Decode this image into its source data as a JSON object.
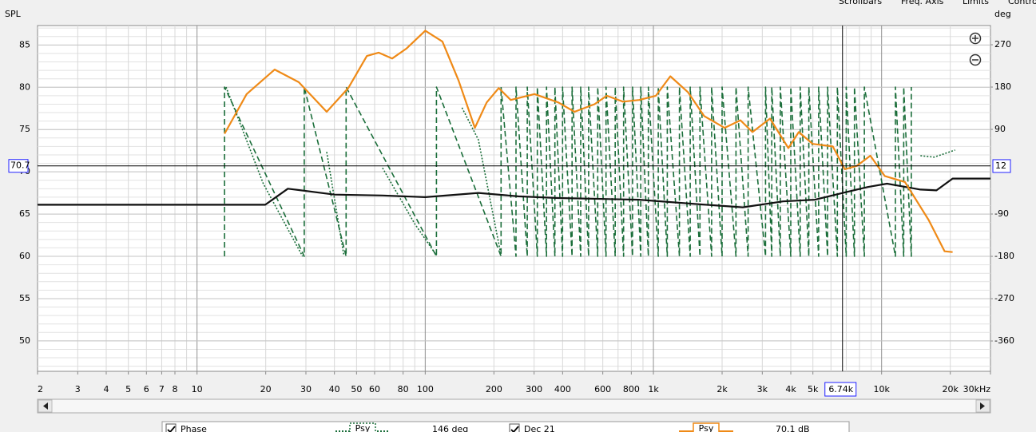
{
  "chart_data": {
    "type": "line",
    "top_buttons": [
      "Scrollbars",
      "Freq. Axis",
      "Limits",
      "Controls"
    ],
    "ylabel": "SPL",
    "y2label": "deg",
    "xlim": [
      2,
      30000
    ],
    "log_x": true,
    "xticks": [
      2,
      3,
      4,
      5,
      6,
      7,
      8,
      10,
      20,
      30,
      40,
      50,
      60,
      80,
      100,
      200,
      300,
      400,
      600,
      800,
      {
        "value": 1000,
        "label": "1k"
      },
      {
        "value": 2000,
        "label": "2k"
      },
      {
        "value": 3000,
        "label": "3k"
      },
      {
        "value": 4000,
        "label": "4k"
      },
      {
        "value": 5000,
        "label": "5k"
      },
      {
        "value": 10000,
        "label": "10k"
      },
      {
        "value": 20000,
        "label": "20k"
      },
      {
        "value": 30000,
        "label": "30kHz"
      }
    ],
    "ylim": [
      46.4,
      87.3
    ],
    "yticks": [
      50,
      55,
      60,
      65,
      70,
      75,
      80,
      85
    ],
    "y2lim": [
      -424.5,
      310.8
    ],
    "y2ticks": [
      -360,
      -270,
      -180,
      -90,
      90,
      180,
      270
    ],
    "grid": true,
    "minor_grid": true,
    "cursor": {
      "x": {
        "value": 6740,
        "label": "6.74k"
      },
      "y": 70.7,
      "y2": 12
    },
    "series": [
      {
        "color": "#1b6e3a",
        "line_style": "dashed",
        "axis": "y2",
        "x": [
          13.2,
          13.2,
          29.5,
          29.5,
          45,
          45,
          112,
          112,
          215,
          215,
          250,
          250,
          280,
          280,
          310,
          310,
          340,
          340,
          370,
          370,
          400,
          400,
          440,
          440,
          480,
          480,
          520,
          520,
          570,
          570,
          620,
          620,
          680,
          680,
          740,
          740,
          810,
          810,
          880,
          880,
          950,
          950,
          1050,
          1050,
          1150,
          1150,
          1300,
          1300,
          1450,
          1450,
          1600,
          1600,
          1800,
          1800,
          2000,
          2000,
          2300,
          2300,
          2600,
          2600,
          3100,
          3100,
          3300,
          3300,
          3600,
          3600,
          4000,
          4000,
          4400,
          4400,
          4800,
          4800,
          5300,
          5300,
          5800,
          5800,
          6400,
          6400,
          7000,
          7000,
          7600,
          7600,
          8400,
          8400,
          11500,
          11500,
          12500,
          12500,
          13500,
          13500
        ],
        "values": [
          -180,
          180,
          -180,
          180,
          -180,
          180,
          -180,
          180,
          -180,
          180,
          -180,
          180,
          -180,
          180,
          -180,
          180,
          -180,
          180,
          -180,
          180,
          -180,
          180,
          -180,
          180,
          -180,
          180,
          -180,
          180,
          -180,
          180,
          -180,
          180,
          -180,
          180,
          -180,
          180,
          -180,
          180,
          -180,
          180,
          -180,
          180,
          -180,
          180,
          -180,
          180,
          -180,
          180,
          -180,
          180,
          -180,
          180,
          -180,
          180,
          -180,
          180,
          -180,
          180,
          -180,
          180,
          -180,
          180,
          -180,
          180,
          -180,
          180,
          -180,
          180,
          -180,
          180,
          -180,
          180,
          -180,
          180,
          -180,
          180,
          -180,
          180,
          -180,
          180,
          -180,
          180,
          -180,
          180,
          -180,
          180,
          -180,
          180,
          -180,
          180
        ]
      },
      {
        "name": "Phase",
        "smoothing": "Psy",
        "readout": "146 deg",
        "color": "#1b6e3a",
        "line_style": "dotted",
        "axis": "y2",
        "x": [
          13.4,
          19.5,
          29,
          29.6,
          37,
          44,
          45.5,
          65,
          90,
          112,
          113,
          145,
          171,
          215,
          13400,
          14800,
          17000,
          21000
        ],
        "values": [
          180,
          -25,
          -180,
          null,
          42,
          -178,
          null,
          8,
          -111,
          -178,
          null,
          136,
          68,
          -178,
          null,
          34,
          31,
          46
        ]
      },
      {
        "color": "#111111",
        "line_style": "solid",
        "x": [
          2,
          19.9,
          25,
          40,
          65,
          100,
          171,
          256,
          383,
          866,
          1515,
          2463,
          3700,
          5100,
          7000,
          8700,
          10560,
          14800,
          17400,
          20480,
          30000
        ],
        "values": [
          66.1,
          66.1,
          68.0,
          67.3,
          67.2,
          67.0,
          67.5,
          67.1,
          66.9,
          66.7,
          66.2,
          65.8,
          66.5,
          66.7,
          67.6,
          68.2,
          68.6,
          67.9,
          67.8,
          69.2,
          69.2
        ]
      },
      {
        "name": "Dec 21",
        "smoothing": "Psy",
        "readout": "70.1 dB",
        "color": "#ef8a17",
        "line_style": "solid",
        "x": [
          13.2,
          16.5,
          21.9,
          27.9,
          37,
          46,
          55.5,
          62.5,
          71.6,
          82.9,
          100,
          119,
          140,
          165,
          186,
          210,
          237,
          301,
          383,
          451,
          552,
          625,
          736,
          866,
          1025,
          1186,
          1418,
          1668,
          2050,
          2406,
          2716,
          3244,
          3903,
          4335,
          4986,
          6112,
          6903,
          7785,
          8928,
          10320,
          12650,
          16080,
          18890,
          20480
        ],
        "values": [
          74.5,
          79.2,
          82.1,
          80.6,
          77.1,
          79.9,
          83.7,
          84.1,
          83.4,
          84.6,
          86.7,
          85.4,
          80.8,
          75.2,
          78.2,
          79.9,
          78.5,
          79.2,
          78.2,
          77.1,
          78.0,
          79.0,
          78.3,
          78.5,
          79.0,
          81.3,
          79.4,
          76.6,
          75.2,
          76.1,
          74.7,
          76.3,
          72.8,
          74.7,
          73.3,
          73.0,
          70.3,
          70.7,
          71.9,
          69.5,
          68.8,
          64.3,
          60.6,
          60.5
        ]
      }
    ]
  }
}
